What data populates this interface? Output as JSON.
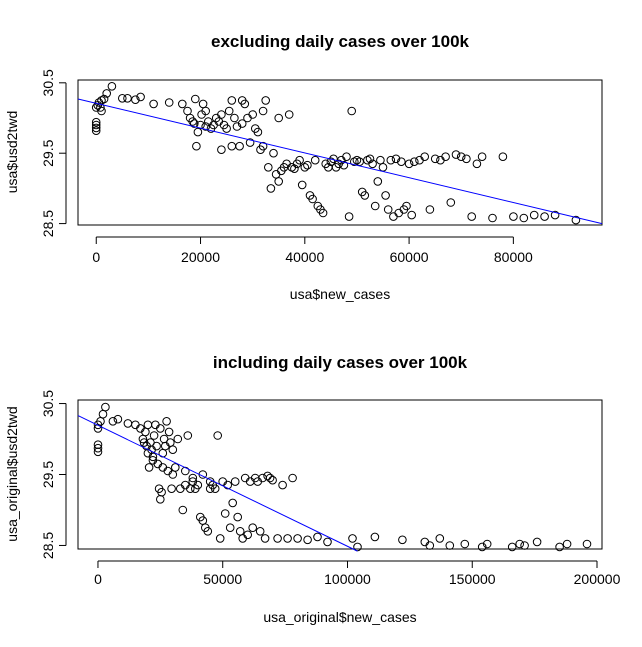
{
  "chart_data": [
    {
      "type": "scatter",
      "title": "excluding daily cases over 100k",
      "xlabel": "usa$new_cases",
      "ylabel": "usa$usd2twd",
      "xlim": [
        -3500,
        97000
      ],
      "ylim": [
        28.48,
        30.54
      ],
      "xticks": [
        "0",
        "20000",
        "40000",
        "60000",
        "80000"
      ],
      "xtick_values": [
        0,
        20000,
        40000,
        60000,
        80000
      ],
      "yticks": [
        "28.5",
        "29.5",
        "30.5"
      ],
      "ytick_values": [
        28.5,
        29.5,
        30.5
      ],
      "grid": false,
      "point_style": "open circle",
      "regression_line": {
        "color": "#0000ff",
        "x": [
          -3500,
          97000
        ],
        "y": [
          30.27,
          28.5
        ]
      },
      "points": [
        [
          0,
          29.82
        ],
        [
          0,
          29.86
        ],
        [
          0,
          29.9
        ],
        [
          0,
          29.94
        ],
        [
          0,
          30.15
        ],
        [
          300,
          30.18
        ],
        [
          500,
          30.22
        ],
        [
          800,
          30.15
        ],
        [
          1000,
          30.25
        ],
        [
          1500,
          30.27
        ],
        [
          2000,
          30.35
        ],
        [
          3000,
          30.45
        ],
        [
          5000,
          30.28
        ],
        [
          6000,
          30.28
        ],
        [
          7500,
          30.26
        ],
        [
          8500,
          30.3
        ],
        [
          11000,
          30.2
        ],
        [
          14000,
          30.22
        ],
        [
          16500,
          30.2
        ],
        [
          17500,
          30.1
        ],
        [
          18000,
          30.0
        ],
        [
          18500,
          29.95
        ],
        [
          18800,
          29.92
        ],
        [
          19000,
          30.27
        ],
        [
          19200,
          29.6
        ],
        [
          19500,
          29.8
        ],
        [
          20000,
          29.9
        ],
        [
          20200,
          30.05
        ],
        [
          20500,
          30.2
        ],
        [
          21000,
          29.88
        ],
        [
          21500,
          29.95
        ],
        [
          22000,
          29.85
        ],
        [
          22500,
          29.9
        ],
        [
          23000,
          30.0
        ],
        [
          23500,
          29.95
        ],
        [
          24000,
          30.05
        ],
        [
          24500,
          29.9
        ],
        [
          25000,
          29.85
        ],
        [
          25500,
          30.1
        ],
        [
          26000,
          30.25
        ],
        [
          26500,
          30.0
        ],
        [
          27000,
          29.88
        ],
        [
          27500,
          29.6
        ],
        [
          28000,
          29.92
        ],
        [
          28500,
          30.2
        ],
        [
          29000,
          30.0
        ],
        [
          29500,
          29.65
        ],
        [
          30000,
          30.05
        ],
        [
          30500,
          29.85
        ],
        [
          31000,
          29.8
        ],
        [
          31500,
          29.55
        ],
        [
          32000,
          30.1
        ],
        [
          32500,
          30.25
        ],
        [
          33000,
          29.3
        ],
        [
          33500,
          29.0
        ],
        [
          34000,
          29.5
        ],
        [
          34500,
          29.2
        ],
        [
          35000,
          29.1
        ],
        [
          35500,
          29.25
        ],
        [
          36000,
          29.3
        ],
        [
          36500,
          29.35
        ],
        [
          37000,
          30.05
        ],
        [
          37500,
          29.3
        ],
        [
          38000,
          29.28
        ],
        [
          38500,
          29.35
        ],
        [
          39000,
          29.4
        ],
        [
          39500,
          29.05
        ],
        [
          40000,
          29.3
        ],
        [
          40500,
          29.33
        ],
        [
          41000,
          28.9
        ],
        [
          41500,
          28.85
        ],
        [
          42000,
          29.4
        ],
        [
          42500,
          28.75
        ],
        [
          43000,
          28.7
        ],
        [
          43500,
          28.65
        ],
        [
          44000,
          29.35
        ],
        [
          44500,
          29.3
        ],
        [
          45000,
          29.38
        ],
        [
          45500,
          29.42
        ],
        [
          46000,
          29.3
        ],
        [
          46500,
          29.35
        ],
        [
          47000,
          29.4
        ],
        [
          47500,
          29.33
        ],
        [
          48000,
          29.45
        ],
        [
          48500,
          28.6
        ],
        [
          49000,
          30.1
        ],
        [
          49500,
          29.38
        ],
        [
          50000,
          29.4
        ],
        [
          50500,
          29.38
        ],
        [
          51000,
          28.95
        ],
        [
          51500,
          28.9
        ],
        [
          52000,
          29.4
        ],
        [
          52500,
          29.42
        ],
        [
          53000,
          29.35
        ],
        [
          53500,
          28.75
        ],
        [
          54000,
          29.1
        ],
        [
          54500,
          29.4
        ],
        [
          55000,
          29.3
        ],
        [
          55500,
          28.9
        ],
        [
          56000,
          28.7
        ],
        [
          56500,
          29.4
        ],
        [
          57000,
          28.6
        ],
        [
          57500,
          29.42
        ],
        [
          58000,
          28.65
        ],
        [
          58500,
          29.38
        ],
        [
          59000,
          28.7
        ],
        [
          59500,
          28.75
        ],
        [
          60000,
          29.35
        ],
        [
          60500,
          28.62
        ],
        [
          61000,
          29.38
        ],
        [
          62000,
          29.4
        ],
        [
          63000,
          29.45
        ],
        [
          64000,
          28.7
        ],
        [
          65000,
          29.42
        ],
        [
          66000,
          29.4
        ],
        [
          67000,
          29.45
        ],
        [
          68000,
          28.8
        ],
        [
          69000,
          29.48
        ],
        [
          70000,
          29.45
        ],
        [
          71000,
          29.42
        ],
        [
          72000,
          28.6
        ],
        [
          73000,
          29.35
        ],
        [
          74000,
          29.45
        ],
        [
          76000,
          28.58
        ],
        [
          78000,
          29.45
        ],
        [
          80000,
          28.6
        ],
        [
          82000,
          28.58
        ],
        [
          84000,
          28.62
        ],
        [
          86000,
          28.6
        ],
        [
          88000,
          28.62
        ],
        [
          92000,
          28.55
        ],
        [
          1000,
          30.1
        ],
        [
          24000,
          29.55
        ],
        [
          35000,
          30.0
        ],
        [
          26000,
          29.6
        ],
        [
          28000,
          30.25
        ],
        [
          21000,
          30.1
        ],
        [
          32000,
          29.6
        ]
      ]
    },
    {
      "type": "scatter",
      "title": "including daily cases over 100k",
      "xlabel": "usa_original$new_cases",
      "ylabel": "usa_original$usd2twd",
      "xlim": [
        -8000,
        202000
      ],
      "ylim": [
        28.45,
        30.55
      ],
      "xticks": [
        "0",
        "50000",
        "100000",
        "150000",
        "200000"
      ],
      "xtick_values": [
        0,
        50000,
        100000,
        150000,
        200000
      ],
      "yticks": [
        "28.5",
        "29.5",
        "30.5"
      ],
      "ytick_values": [
        28.5,
        29.5,
        30.5
      ],
      "grid": false,
      "point_style": "open circle",
      "regression_line": {
        "color": "#0000ff",
        "x": [
          -8000,
          104000
        ],
        "y": [
          30.33,
          28.42
        ]
      },
      "points": [
        [
          0,
          29.82
        ],
        [
          0,
          29.87
        ],
        [
          0,
          29.92
        ],
        [
          0,
          30.15
        ],
        [
          0,
          30.2
        ],
        [
          1000,
          30.25
        ],
        [
          2000,
          30.35
        ],
        [
          3000,
          30.45
        ],
        [
          6000,
          30.25
        ],
        [
          8000,
          30.28
        ],
        [
          12000,
          30.22
        ],
        [
          15000,
          30.2
        ],
        [
          17000,
          30.15
        ],
        [
          18000,
          30.0
        ],
        [
          18500,
          29.95
        ],
        [
          19000,
          30.1
        ],
        [
          19500,
          29.9
        ],
        [
          20000,
          29.8
        ],
        [
          20500,
          29.6
        ],
        [
          21000,
          29.95
        ],
        [
          21500,
          29.85
        ],
        [
          22000,
          29.7
        ],
        [
          22500,
          30.05
        ],
        [
          23000,
          30.2
        ],
        [
          23500,
          29.9
        ],
        [
          24000,
          29.65
        ],
        [
          24500,
          29.3
        ],
        [
          25000,
          29.15
        ],
        [
          25500,
          29.25
        ],
        [
          26000,
          29.6
        ],
        [
          26500,
          30.0
        ],
        [
          27000,
          29.9
        ],
        [
          27500,
          30.25
        ],
        [
          28000,
          29.55
        ],
        [
          28500,
          30.1
        ],
        [
          29000,
          29.95
        ],
        [
          29500,
          29.3
        ],
        [
          30000,
          29.5
        ],
        [
          31000,
          29.6
        ],
        [
          32000,
          30.0
        ],
        [
          33000,
          29.3
        ],
        [
          34000,
          29.0
        ],
        [
          35000,
          29.35
        ],
        [
          36000,
          30.05
        ],
        [
          37000,
          29.3
        ],
        [
          38000,
          29.4
        ],
        [
          39000,
          29.3
        ],
        [
          40000,
          29.35
        ],
        [
          41000,
          28.9
        ],
        [
          42000,
          28.85
        ],
        [
          43000,
          28.75
        ],
        [
          44000,
          28.7
        ],
        [
          45000,
          29.4
        ],
        [
          46000,
          29.35
        ],
        [
          47000,
          29.3
        ],
        [
          48000,
          30.05
        ],
        [
          49000,
          28.6
        ],
        [
          50000,
          29.4
        ],
        [
          51000,
          28.95
        ],
        [
          52000,
          29.35
        ],
        [
          53000,
          28.75
        ],
        [
          54000,
          29.1
        ],
        [
          55000,
          29.4
        ],
        [
          56000,
          28.9
        ],
        [
          57000,
          28.7
        ],
        [
          58000,
          28.6
        ],
        [
          59000,
          29.45
        ],
        [
          60000,
          28.65
        ],
        [
          61000,
          29.4
        ],
        [
          62000,
          28.75
        ],
        [
          63000,
          29.45
        ],
        [
          64000,
          29.4
        ],
        [
          65000,
          28.7
        ],
        [
          66000,
          29.45
        ],
        [
          67000,
          28.6
        ],
        [
          68000,
          29.48
        ],
        [
          69000,
          29.45
        ],
        [
          70000,
          29.42
        ],
        [
          72000,
          28.6
        ],
        [
          74000,
          29.35
        ],
        [
          76000,
          28.6
        ],
        [
          78000,
          29.45
        ],
        [
          80000,
          28.6
        ],
        [
          84000,
          28.58
        ],
        [
          88000,
          28.62
        ],
        [
          92000,
          28.55
        ],
        [
          102000,
          28.6
        ],
        [
          104000,
          28.48
        ],
        [
          111000,
          28.62
        ],
        [
          122000,
          28.58
        ],
        [
          131000,
          28.55
        ],
        [
          133000,
          28.5
        ],
        [
          137000,
          28.6
        ],
        [
          141000,
          28.5
        ],
        [
          147000,
          28.52
        ],
        [
          154000,
          28.48
        ],
        [
          156000,
          28.52
        ],
        [
          166000,
          28.48
        ],
        [
          169000,
          28.52
        ],
        [
          171000,
          28.5
        ],
        [
          176000,
          28.55
        ],
        [
          185000,
          28.48
        ],
        [
          188000,
          28.52
        ],
        [
          196000,
          28.52
        ],
        [
          20000,
          30.2
        ],
        [
          25000,
          30.15
        ],
        [
          22000,
          29.75
        ],
        [
          26000,
          29.8
        ],
        [
          30000,
          29.85
        ],
        [
          35000,
          29.55
        ],
        [
          45000,
          29.3
        ],
        [
          38000,
          29.45
        ],
        [
          42000,
          29.5
        ]
      ]
    }
  ]
}
